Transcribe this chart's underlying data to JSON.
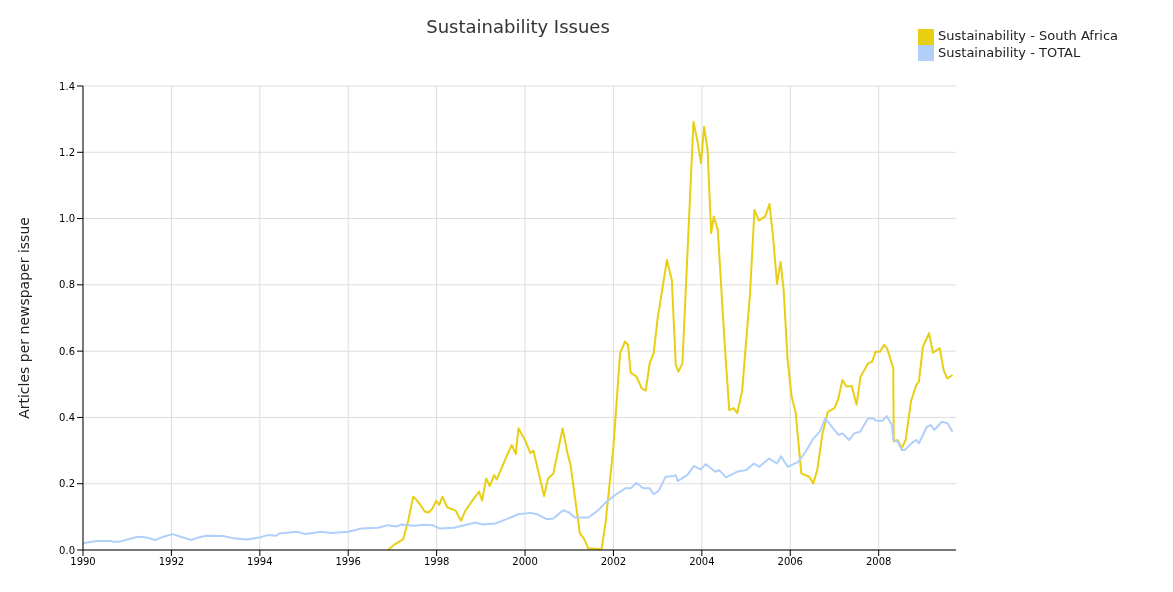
{
  "chart_data": {
    "type": "line",
    "title": "Sustainability Issues",
    "ylabel": "Articles per newspaper issue",
    "xlim": [
      1990,
      2009.75
    ],
    "xticks": [
      1990,
      1992,
      1994,
      1996,
      1998,
      2000,
      2002,
      2004,
      2006,
      2008
    ],
    "ylim": [
      0,
      1.4
    ],
    "yticks": [
      {
        "value": 0,
        "label": "0.0"
      },
      0.2,
      0.4,
      0.6,
      0.8,
      {
        "value": 1,
        "label": "1.0"
      },
      1.2,
      1.4
    ],
    "grid": true,
    "legend": "top right",
    "line_style": "solid",
    "series": [
      {
        "name": "Sustainability - South Africa",
        "color": "#e8cf14",
        "x": [
          1996.9,
          1997.06,
          1997.24,
          1997.36,
          1997.47,
          1997.58,
          1997.73,
          1997.82,
          1997.91,
          1997.99,
          1998.06,
          1998.13,
          1998.24,
          1998.43,
          1998.55,
          1998.64,
          1998.79,
          1998.96,
          1999.03,
          1999.12,
          1999.2,
          1999.3,
          1999.36,
          1999.58,
          1999.7,
          1999.79,
          1999.85,
          2000.0,
          2000.12,
          2000.19,
          2000.43,
          2000.52,
          2000.64,
          2000.85,
          2000.96,
          2001.03,
          2001.24,
          2001.33,
          2001.43,
          2001.73,
          2001.82,
          2002.0,
          2002.15,
          2002.26,
          2002.33,
          2002.39,
          2002.52,
          2002.64,
          2002.73,
          2002.82,
          2002.91,
          2003.0,
          2003.21,
          2003.32,
          2003.41,
          2003.47,
          2003.56,
          2003.81,
          2003.91,
          2003.98,
          2004.05,
          2004.13,
          2004.21,
          2004.27,
          2004.36,
          2004.52,
          2004.62,
          2004.72,
          2004.8,
          2004.91,
          2005.09,
          2005.19,
          2005.29,
          2005.43,
          2005.53,
          2005.61,
          2005.7,
          2005.78,
          2005.85,
          2005.94,
          2006.03,
          2006.12,
          2006.25,
          2006.43,
          2006.52,
          2006.61,
          2006.73,
          2006.85,
          2007.0,
          2007.08,
          2007.18,
          2007.27,
          2007.39,
          2007.5,
          2007.59,
          2007.76,
          2007.85,
          2007.93,
          2008.03,
          2008.12,
          2008.19,
          2008.33,
          2008.34,
          2008.43,
          2008.52,
          2008.61,
          2008.73,
          2008.85,
          2008.91,
          2009.0,
          2009.14,
          2009.23,
          2009.38,
          2009.47,
          2009.55,
          2009.67
        ],
        "values": [
          0,
          0.018,
          0.032,
          0.09,
          0.161,
          0.146,
          0.116,
          0.113,
          0.126,
          0.149,
          0.136,
          0.161,
          0.129,
          0.119,
          0.088,
          0.116,
          0.146,
          0.176,
          0.149,
          0.216,
          0.193,
          0.226,
          0.213,
          0.282,
          0.317,
          0.29,
          0.367,
          0.332,
          0.292,
          0.3,
          0.163,
          0.216,
          0.231,
          0.367,
          0.292,
          0.256,
          0.05,
          0.035,
          0.005,
          0.002,
          0.08,
          0.312,
          0.594,
          0.629,
          0.619,
          0.535,
          0.523,
          0.488,
          0.481,
          0.563,
          0.594,
          0.699,
          0.875,
          0.815,
          0.558,
          0.538,
          0.563,
          1.292,
          1.227,
          1.167,
          1.277,
          1.207,
          0.956,
          1.006,
          0.966,
          0.613,
          0.422,
          0.428,
          0.413,
          0.478,
          0.775,
          1.026,
          0.994,
          1.006,
          1.044,
          0.946,
          0.803,
          0.87,
          0.785,
          0.573,
          0.463,
          0.417,
          0.231,
          0.221,
          0.201,
          0.241,
          0.352,
          0.417,
          0.428,
          0.453,
          0.513,
          0.493,
          0.495,
          0.438,
          0.523,
          0.563,
          0.568,
          0.598,
          0.598,
          0.619,
          0.609,
          0.548,
          0.327,
          0.332,
          0.307,
          0.332,
          0.448,
          0.498,
          0.508,
          0.613,
          0.654,
          0.595,
          0.609,
          0.543,
          0.518,
          0.528
        ]
      },
      {
        "name": "Sustainability - TOTAL",
        "color": "#b0d0fa",
        "x": [
          1990.0,
          1990.3,
          1990.61,
          1990.7,
          1990.85,
          1991.24,
          1991.43,
          1991.63,
          1991.82,
          1992.03,
          1992.21,
          1992.45,
          1992.61,
          1992.79,
          1993.15,
          1993.45,
          1993.7,
          1994.0,
          1994.18,
          1994.36,
          1994.45,
          1994.85,
          1995.03,
          1995.39,
          1995.61,
          1996.0,
          1996.3,
          1996.67,
          1996.91,
          1997.09,
          1997.21,
          1997.49,
          1997.7,
          1997.91,
          1998.06,
          1998.39,
          1998.67,
          1998.88,
          1999.03,
          1999.33,
          1999.58,
          1999.85,
          2000.12,
          2000.27,
          2000.49,
          2000.64,
          2000.86,
          2001.0,
          2001.12,
          2001.43,
          2001.64,
          2001.82,
          2002.06,
          2002.27,
          2002.39,
          2002.52,
          2002.67,
          2002.82,
          2002.91,
          2003.03,
          2003.18,
          2003.36,
          2003.41,
          2003.45,
          2003.67,
          2003.82,
          2003.97,
          2004.09,
          2004.3,
          2004.39,
          2004.55,
          2004.79,
          2005.0,
          2005.18,
          2005.3,
          2005.52,
          2005.7,
          2005.79,
          2005.94,
          2006.18,
          2006.33,
          2006.52,
          2006.67,
          2006.79,
          2006.94,
          2007.09,
          2007.18,
          2007.33,
          2007.45,
          2007.58,
          2007.76,
          2007.88,
          2007.94,
          2008.09,
          2008.18,
          2008.3,
          2008.33,
          2008.43,
          2008.52,
          2008.59,
          2008.76,
          2008.85,
          2008.91,
          2009.09,
          2009.18,
          2009.26,
          2009.43,
          2009.56,
          2009.67
        ],
        "values": [
          0.02,
          0.027,
          0.027,
          0.025,
          0.026,
          0.04,
          0.038,
          0.03,
          0.04,
          0.048,
          0.04,
          0.03,
          0.038,
          0.043,
          0.042,
          0.035,
          0.032,
          0.038,
          0.045,
          0.043,
          0.05,
          0.055,
          0.048,
          0.055,
          0.051,
          0.055,
          0.065,
          0.067,
          0.075,
          0.071,
          0.077,
          0.073,
          0.076,
          0.075,
          0.065,
          0.067,
          0.076,
          0.083,
          0.077,
          0.08,
          0.093,
          0.108,
          0.112,
          0.108,
          0.093,
          0.095,
          0.12,
          0.113,
          0.098,
          0.098,
          0.118,
          0.143,
          0.168,
          0.186,
          0.186,
          0.203,
          0.186,
          0.186,
          0.168,
          0.18,
          0.221,
          0.223,
          0.226,
          0.208,
          0.226,
          0.253,
          0.243,
          0.259,
          0.236,
          0.241,
          0.219,
          0.236,
          0.241,
          0.261,
          0.251,
          0.276,
          0.261,
          0.283,
          0.251,
          0.266,
          0.293,
          0.336,
          0.357,
          0.397,
          0.372,
          0.347,
          0.352,
          0.332,
          0.352,
          0.357,
          0.397,
          0.397,
          0.39,
          0.39,
          0.404,
          0.377,
          0.332,
          0.327,
          0.302,
          0.302,
          0.324,
          0.332,
          0.322,
          0.372,
          0.377,
          0.362,
          0.387,
          0.382,
          0.357
        ]
      }
    ]
  }
}
